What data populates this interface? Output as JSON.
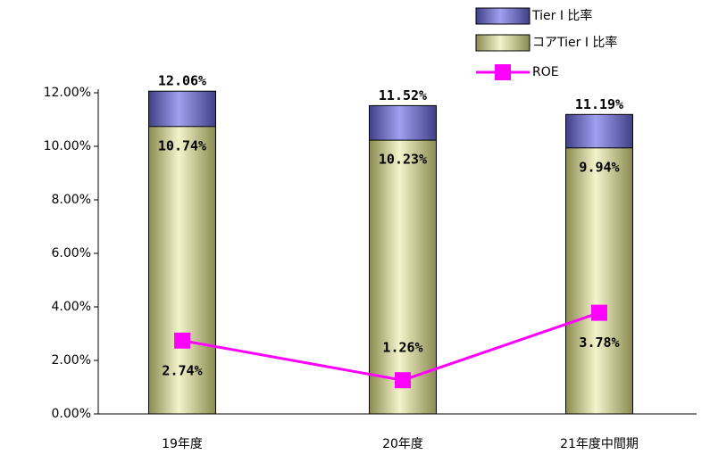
{
  "chart_data": {
    "type": "bar",
    "categories": [
      "19年度",
      "20年度",
      "21年度中間期"
    ],
    "series": [
      {
        "name": "Tier I 比率",
        "color": "#7878c8",
        "values": [
          12.06,
          11.52,
          11.19
        ],
        "value_labels": [
          "12.06%",
          "11.52%",
          "11.19%"
        ]
      },
      {
        "name": "コアTier I 比率",
        "color": "#e0e0a8",
        "values": [
          10.74,
          10.23,
          9.94
        ],
        "value_labels": [
          "10.74%",
          "10.23%",
          "9.94%"
        ]
      },
      {
        "name": "ROE",
        "type": "line",
        "color": "#ff00ff",
        "values": [
          2.74,
          1.26,
          3.78
        ],
        "value_labels": [
          "2.74%",
          "1.26%",
          "3.78%"
        ]
      }
    ],
    "ylim": [
      0,
      12
    ],
    "yticks": [
      {
        "value": 0,
        "label": "0.00%"
      },
      {
        "value": 2,
        "label": "2.00%"
      },
      {
        "value": 4,
        "label": "4.00%"
      },
      {
        "value": 6,
        "label": "6.00%"
      },
      {
        "value": 8,
        "label": "8.00%"
      },
      {
        "value": 10,
        "label": "10.00%"
      },
      {
        "value": 12,
        "label": "12.00%"
      }
    ]
  }
}
